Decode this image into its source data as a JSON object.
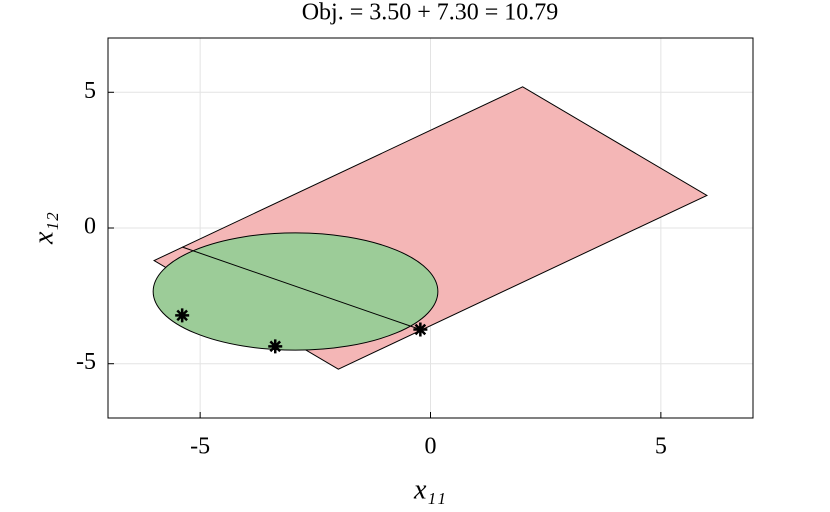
{
  "chart_data": {
    "type": "region",
    "title": "Obj. = 3.50 + 7.30 = 10.79",
    "xlabel": "x₁₁",
    "ylabel": "x₁₂",
    "xlim": [
      -7,
      7
    ],
    "ylim": [
      -7,
      7
    ],
    "xticks": [
      -5,
      0,
      5
    ],
    "yticks": [
      -5,
      0,
      5
    ],
    "grid": true,
    "polygon": {
      "color": "#f4b6b6",
      "x": [
        -6,
        2,
        6,
        -2
      ],
      "y": [
        -1.2,
        5.2,
        1.2,
        -5.2
      ]
    },
    "ellipse": {
      "color": "#9ccc98",
      "center": [
        -2.93,
        -2.34
      ],
      "radii": [
        3.09,
        2.16
      ]
    },
    "segment": {
      "x": [
        -5.39,
        -0.22
      ],
      "y": [
        -0.7,
        -3.74
      ]
    },
    "points": {
      "x": [
        -5.39,
        -3.37,
        -0.22
      ],
      "y": [
        -3.22,
        -4.36,
        -3.74
      ]
    }
  }
}
